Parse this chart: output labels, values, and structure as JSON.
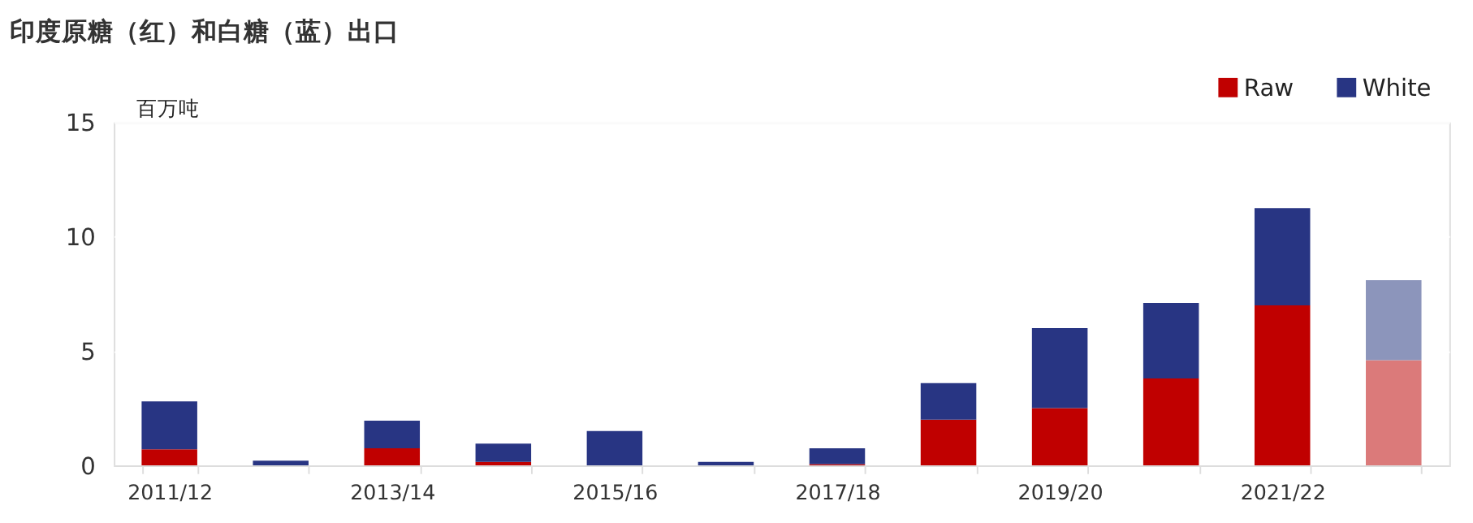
{
  "chart_data": {
    "type": "bar",
    "title": "印度原糖（红）和白糖（蓝）出口",
    "ylabel": "百万吨",
    "categories": [
      "2011/12",
      null,
      "2013/14",
      null,
      "2015/16",
      null,
      "2017/18",
      null,
      "2019/20",
      null,
      "2021/22",
      null
    ],
    "series": [
      {
        "name": "Raw",
        "color": "#c00000",
        "values": [
          0.7,
          0,
          0.75,
          0.15,
          0,
          0,
          0.05,
          2.0,
          2.5,
          3.8,
          7.0,
          4.6
        ],
        "colors": [
          "#c00000",
          "#c00000",
          "#c00000",
          "#c00000",
          "#c00000",
          "#c00000",
          "#c00000",
          "#c00000",
          "#c00000",
          "#c00000",
          "#c00000",
          "#db7a7a"
        ]
      },
      {
        "name": "White",
        "color": "#283583",
        "values": [
          2.1,
          0.2,
          1.2,
          0.8,
          1.5,
          0.15,
          0.7,
          1.6,
          3.5,
          3.3,
          4.25,
          3.5
        ],
        "colors": [
          "#283583",
          "#283583",
          "#283583",
          "#283583",
          "#283583",
          "#283583",
          "#283583",
          "#283583",
          "#283583",
          "#283583",
          "#283583",
          "#8c95bb"
        ]
      }
    ],
    "stacked": true,
    "ylim": [
      0,
      15
    ],
    "yticks": [
      0,
      5,
      10,
      15
    ],
    "grid": "y",
    "legend": "top right"
  }
}
